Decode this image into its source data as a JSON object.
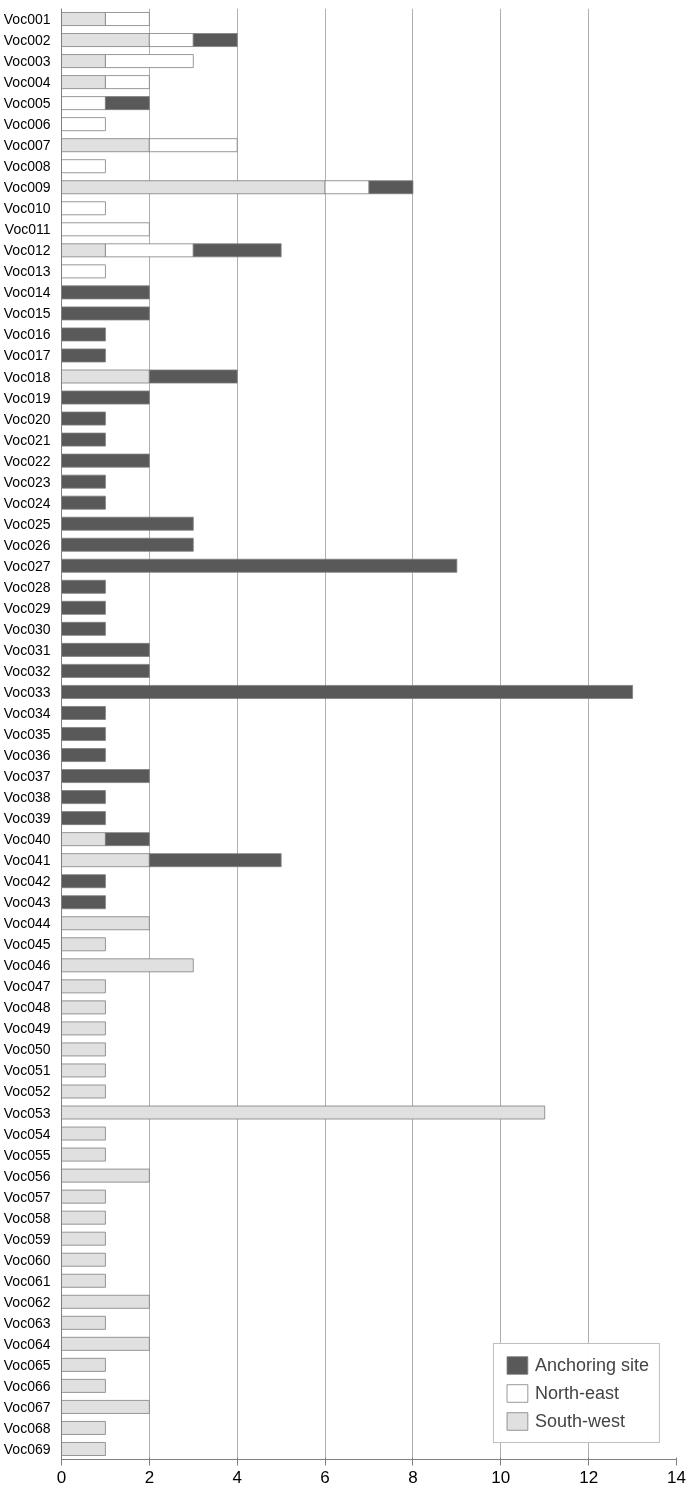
{
  "chart_data": {
    "type": "bar",
    "orientation": "horizontal",
    "stacked": true,
    "categories": [
      "Voc001",
      "Voc002",
      "Voc003",
      "Voc004",
      "Voc005",
      "Voc006",
      "Voc007",
      "Voc008",
      "Voc009",
      "Voc010",
      "Voc011",
      "Voc012",
      "Voc013",
      "Voc014",
      "Voc015",
      "Voc016",
      "Voc017",
      "Voc018",
      "Voc019",
      "Voc020",
      "Voc021",
      "Voc022",
      "Voc023",
      "Voc024",
      "Voc025",
      "Voc026",
      "Voc027",
      "Voc028",
      "Voc029",
      "Voc030",
      "Voc031",
      "Voc032",
      "Voc033",
      "Voc034",
      "Voc035",
      "Voc036",
      "Voc037",
      "Voc038",
      "Voc039",
      "Voc040",
      "Voc041",
      "Voc042",
      "Voc043",
      "Voc044",
      "Voc045",
      "Voc046",
      "Voc047",
      "Voc048",
      "Voc049",
      "Voc050",
      "Voc051",
      "Voc052",
      "Voc053",
      "Voc054",
      "Voc055",
      "Voc056",
      "Voc057",
      "Voc058",
      "Voc059",
      "Voc060",
      "Voc061",
      "Voc062",
      "Voc063",
      "Voc064",
      "Voc065",
      "Voc066",
      "Voc067",
      "Voc068",
      "Voc069"
    ],
    "series": [
      {
        "name": "South-west",
        "color": "#e0e0e0",
        "values": [
          1,
          2,
          1,
          1,
          null,
          null,
          2,
          null,
          6,
          null,
          null,
          1,
          null,
          null,
          null,
          null,
          null,
          2,
          null,
          null,
          null,
          null,
          null,
          null,
          null,
          null,
          null,
          null,
          null,
          null,
          null,
          null,
          null,
          null,
          null,
          null,
          null,
          null,
          null,
          1,
          2,
          null,
          null,
          2,
          1,
          3,
          1,
          1,
          1,
          1,
          1,
          1,
          11,
          1,
          1,
          2,
          1,
          1,
          1,
          1,
          1,
          2,
          1,
          2,
          1,
          1,
          2,
          1,
          1
        ]
      },
      {
        "name": "North-east",
        "color": "#ffffff",
        "values": [
          1,
          1,
          2,
          1,
          1,
          1,
          2,
          1,
          1,
          1,
          2,
          2,
          1,
          null,
          null,
          null,
          null,
          null,
          null,
          null,
          null,
          null,
          null,
          null,
          null,
          null,
          null,
          null,
          null,
          null,
          null,
          null,
          null,
          null,
          null,
          null,
          null,
          null,
          null,
          null,
          null,
          null,
          null,
          null,
          null,
          null,
          null,
          null,
          null,
          null,
          null,
          null,
          null,
          null,
          null,
          null,
          null,
          null,
          null,
          null,
          null,
          null,
          null,
          null,
          null,
          null,
          null,
          null,
          null
        ]
      },
      {
        "name": "Anchoring site",
        "color": "#595959",
        "values": [
          null,
          1,
          null,
          null,
          1,
          null,
          null,
          null,
          1,
          null,
          null,
          2,
          null,
          2,
          2,
          1,
          1,
          2,
          2,
          1,
          1,
          2,
          1,
          1,
          3,
          3,
          9,
          1,
          1,
          1,
          2,
          2,
          13,
          1,
          1,
          1,
          2,
          1,
          1,
          1,
          3,
          1,
          1,
          null,
          null,
          null,
          null,
          null,
          null,
          null,
          null,
          null,
          null,
          null,
          null,
          null,
          null,
          null,
          null,
          null,
          null,
          null,
          null,
          null,
          null,
          null,
          null,
          null,
          null
        ]
      }
    ],
    "xlim": [
      0,
      14
    ],
    "xticks": [
      0,
      2,
      4,
      6,
      8,
      10,
      12,
      14
    ],
    "grid": "x",
    "legend": "bottom right"
  }
}
